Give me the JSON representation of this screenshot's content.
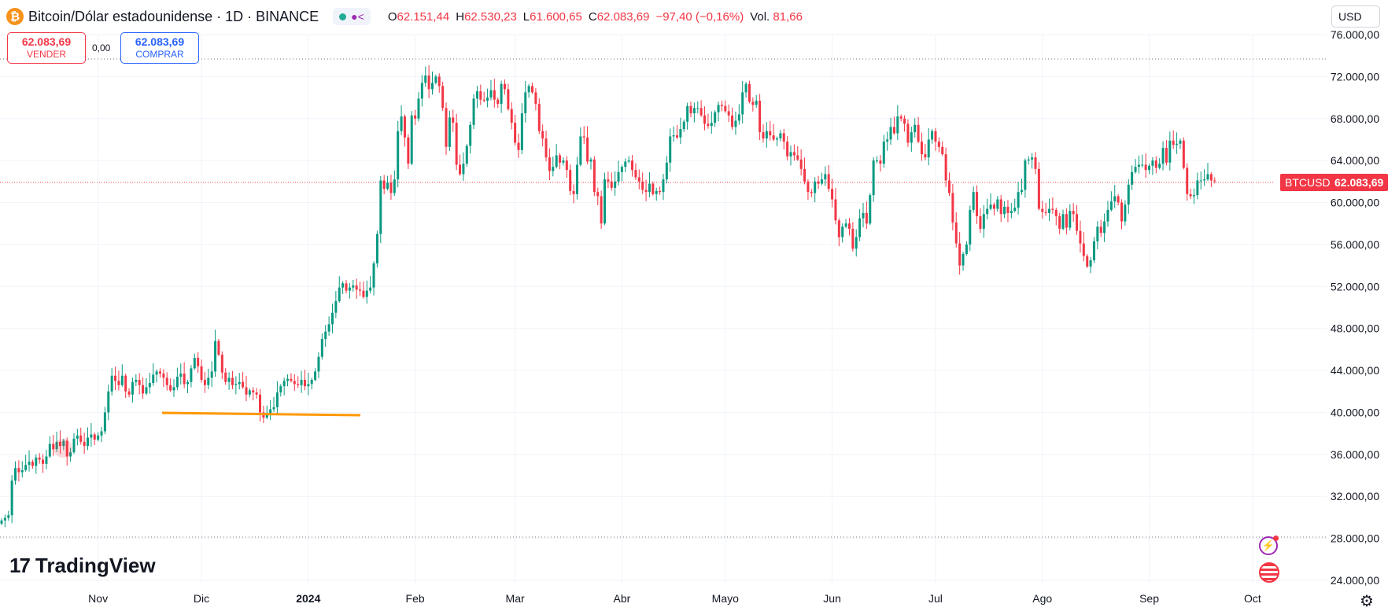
{
  "header": {
    "symbol_logo": "₿",
    "title": "Bitcoin/Dólar estadounidense · 1D · BINANCE",
    "share_icon": "share-icon",
    "ohlc": [
      {
        "label": "O",
        "value": "62.151,44"
      },
      {
        "label": "H",
        "value": "62.530,23"
      },
      {
        "label": "L",
        "value": "61.600,65"
      },
      {
        "label": "C",
        "value": "62.083,69"
      }
    ],
    "change": "−97,40 (−0,16%)",
    "volume_label": "Vol.",
    "volume_value": "81,66"
  },
  "currency_select": "USD",
  "trade": {
    "sell_price": "62.083,69",
    "sell_label": "VENDER",
    "spread": "0,00",
    "buy_price": "62.083,69",
    "buy_label": "COMPRAR"
  },
  "branding": {
    "logo_mark": "17",
    "name": "TradingView"
  },
  "price_tag": {
    "symbol": "BTCUSD",
    "value": "62.083,69"
  },
  "colors": {
    "up": "#089981",
    "down": "#f23645",
    "trendline": "#ff9800",
    "buy": "#2962ff"
  },
  "icons": [
    "flash-icon",
    "economic-calendar-flag-icon",
    "settings-icon"
  ],
  "chart_data": {
    "type": "candlestick",
    "timeframe": "1D",
    "last_price": 62083.69,
    "ylim": [
      24000,
      76000
    ],
    "y_ticks": [
      24000,
      28000,
      32000,
      36000,
      40000,
      44000,
      48000,
      52000,
      56000,
      60000,
      64000,
      68000,
      72000,
      76000
    ],
    "y_tick_labels": [
      "24.000,00",
      "28.000,00",
      "32.000,00",
      "36.000,00",
      "40.000,00",
      "44.000,00",
      "48.000,00",
      "52.000,00",
      "56.000,00",
      "60.000,00",
      "64.000,00",
      "68.000,00",
      "72.000,00",
      "76.000,00"
    ],
    "x_labels": [
      {
        "label": "Nov",
        "day": 28,
        "bold": false
      },
      {
        "label": "Dic",
        "day": 58,
        "bold": false
      },
      {
        "label": "2024",
        "day": 89,
        "bold": true
      },
      {
        "label": "Feb",
        "day": 120,
        "bold": false
      },
      {
        "label": "Mar",
        "day": 149,
        "bold": false
      },
      {
        "label": "Abr",
        "day": 180,
        "bold": false
      },
      {
        "label": "Mayo",
        "day": 210,
        "bold": false
      },
      {
        "label": "Jun",
        "day": 241,
        "bold": false
      },
      {
        "label": "Jul",
        "day": 271,
        "bold": false
      },
      {
        "label": "Ago",
        "day": 302,
        "bold": false
      },
      {
        "label": "Sep",
        "day": 333,
        "bold": false
      },
      {
        "label": "Oct",
        "day": 363,
        "bold": false
      }
    ],
    "closes": [
      29700,
      29950,
      30200,
      33500,
      34700,
      34300,
      34500,
      35000,
      35300,
      34900,
      35700,
      35500,
      35100,
      35800,
      37000,
      36500,
      37200,
      36800,
      37300,
      35800,
      36200,
      37500,
      37800,
      37200,
      36800,
      37600,
      37900,
      37400,
      37800,
      38200,
      40000,
      42000,
      43500,
      43000,
      42600,
      43500,
      42000,
      41700,
      42900,
      43100,
      42600,
      41800,
      42400,
      42800,
      43600,
      43900,
      43700,
      43300,
      42600,
      42100,
      42400,
      43400,
      43700,
      42700,
      42900,
      44200,
      45200,
      44400,
      43100,
      42600,
      43300,
      43900,
      46800,
      45500,
      43800,
      42900,
      43300,
      42600,
      42700,
      42900,
      42400,
      41700,
      42100,
      41900,
      41700,
      40000,
      39500,
      39900,
      40300,
      40500,
      41900,
      42500,
      43000,
      43200,
      43000,
      42700,
      42600,
      43100,
      42500,
      42700,
      43100,
      43900,
      45300,
      47000,
      47700,
      48400,
      49500,
      50600,
      51900,
      52300,
      51600,
      51900,
      52100,
      51700,
      51600,
      51000,
      51600,
      51900,
      54200,
      57000,
      62100,
      61300,
      61900,
      60900,
      62200,
      66800,
      68200,
      66200,
      63700,
      68300,
      68000,
      69900,
      71400,
      72100,
      70800,
      71400,
      72000,
      71100,
      69000,
      65300,
      68100,
      67600,
      63600,
      62700,
      63700,
      65400,
      67400,
      69900,
      70600,
      69800,
      69700,
      70000,
      70700,
      69800,
      69400,
      71300,
      70800,
      68900,
      67600,
      65700,
      65000,
      68500,
      70500,
      71100,
      70500,
      69400,
      66800,
      66100,
      64300,
      63000,
      63400,
      64500,
      63800,
      64000,
      63100,
      61100,
      60800,
      63600,
      66300,
      66200,
      63900,
      64100,
      61000,
      60600,
      58000,
      62200,
      62000,
      61400,
      62000,
      62900,
      63400,
      63900,
      64000,
      63100,
      62400,
      62000,
      61200,
      61000,
      61800,
      60800,
      61100,
      61000,
      62200,
      63800,
      66300,
      66400,
      66200,
      67000,
      67700,
      69200,
      68500,
      69000,
      69000,
      68300,
      67500,
      67300,
      67600,
      68600,
      69300,
      69200,
      68700,
      68300,
      67200,
      67800,
      68400,
      70500,
      71300,
      69600,
      69300,
      69700,
      66700,
      66100,
      66800,
      66400,
      66000,
      66100,
      66600,
      65800,
      64400,
      64800,
      64500,
      64100,
      63200,
      62000,
      61000,
      60900,
      62000,
      61800,
      62200,
      62700,
      61300,
      60300,
      58300,
      56700,
      57700,
      58000,
      57500,
      55600,
      56700,
      58500,
      59000,
      58000,
      60700,
      64000,
      64000,
      63700,
      65800,
      66000,
      67200,
      66600,
      68200,
      68000,
      67500,
      65700,
      66700,
      67400,
      65800,
      64600,
      64300,
      66000,
      66800,
      65800,
      65300,
      64600,
      62100,
      60900,
      58100,
      56100,
      54000,
      55100,
      56000,
      59300,
      61000,
      58700,
      57500,
      58900,
      59400,
      59800,
      59400,
      60300,
      58900,
      59600,
      59000,
      59200,
      59500,
      61000,
      61200,
      64000,
      64100,
      64300,
      63200,
      59400,
      59100,
      59000,
      59400,
      59300,
      58700,
      57500,
      58900,
      57600,
      59200,
      58900,
      57300,
      56100,
      54900,
      53900,
      54500,
      56300,
      57700,
      57100,
      58200,
      59300,
      60100,
      60600,
      60000,
      58200,
      59800,
      61700,
      62900,
      63400,
      63600,
      63600,
      63100,
      63500,
      64000,
      63300,
      63700,
      65200,
      63800,
      65900,
      65500,
      65600,
      65900,
      63300,
      60800,
      60600,
      60700,
      62100,
      62100,
      62200,
      62700,
      62100,
      62080
    ]
  }
}
